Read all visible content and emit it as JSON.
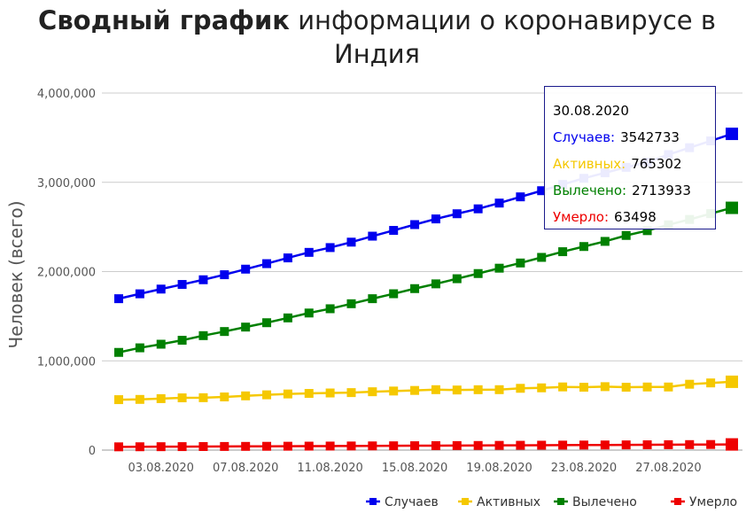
{
  "title_bold": "Сводный график",
  "title_rest": "информации о коронавирусе в Индия",
  "chart_data": {
    "type": "line",
    "ylabel": "Человек (всего)",
    "ylim": [
      0,
      4000000
    ],
    "yticks": [
      "0",
      "1,000,000",
      "2,000,000",
      "3,000,000",
      "4,000,000"
    ],
    "xticks": [
      "03.08.2020",
      "07.08.2020",
      "11.08.2020",
      "15.08.2020",
      "19.08.2020",
      "23.08.2020",
      "27.08.2020"
    ],
    "legend_position": "bottom-right",
    "categories": [
      "01.08.2020",
      "02.08.2020",
      "03.08.2020",
      "04.08.2020",
      "05.08.2020",
      "06.08.2020",
      "07.08.2020",
      "08.08.2020",
      "09.08.2020",
      "10.08.2020",
      "11.08.2020",
      "12.08.2020",
      "13.08.2020",
      "14.08.2020",
      "15.08.2020",
      "16.08.2020",
      "17.08.2020",
      "18.08.2020",
      "19.08.2020",
      "20.08.2020",
      "21.08.2020",
      "22.08.2020",
      "23.08.2020",
      "24.08.2020",
      "25.08.2020",
      "26.08.2020",
      "27.08.2020",
      "28.08.2020",
      "29.08.2020",
      "30.08.2020"
    ],
    "series": [
      {
        "name": "Случаев",
        "color": "#0000ee",
        "values": [
          1695988,
          1750723,
          1803695,
          1855745,
          1908254,
          1964536,
          2027074,
          2088611,
          2153010,
          2215074,
          2268675,
          2329638,
          2396637,
          2461190,
          2526192,
          2589682,
          2647663,
          2702742,
          2767273,
          2836925,
          2905825,
          2975701,
          3044940,
          3106348,
          3167323,
          3224547,
          3310234,
          3387500,
          3463972,
          3542733
        ]
      },
      {
        "name": "Активных",
        "color": "#f5c800",
        "values": [
          565103,
          567730,
          576511,
          585297,
          587012,
          595501,
          607384,
          619088,
          628747,
          634945,
          639929,
          643948,
          653622,
          661595,
          668220,
          676900,
          673166,
          676514,
          676900,
          692028,
          697330,
          707668,
          704348,
          710771,
          704348,
          706851,
          706851,
          737700,
          752424,
          765302
        ]
      },
      {
        "name": "Вылечено",
        "color": "#008000",
        "values": [
          1094374,
          1145629,
          1186203,
          1230509,
          1282215,
          1328336,
          1378105,
          1427005,
          1480884,
          1535743,
          1583489,
          1639599,
          1695982,
          1751555,
          1808936,
          1862258,
          1919842,
          1977779,
          2037870,
          2096064,
          2158946,
          2222577,
          2280566,
          2338035,
          2404585,
          2458339,
          2523771,
          2583948,
          2648998,
          2713933
        ]
      },
      {
        "name": "Умерло",
        "color": "#ee0000",
        "values": [
          36511,
          37364,
          38135,
          38938,
          39795,
          40699,
          41585,
          42518,
          43379,
          44386,
          45257,
          46091,
          47033,
          48040,
          49036,
          49980,
          50921,
          51797,
          52889,
          53866,
          54849,
          55794,
          56706,
          57542,
          58390,
          59449,
          60472,
          61529,
          62550,
          63498
        ]
      }
    ]
  },
  "tooltip": {
    "date": "30.08.2020",
    "rows": [
      {
        "label": "Случаев:",
        "value": "3542733",
        "color": "#0000ee"
      },
      {
        "label": "Активных:",
        "value": "765302",
        "color": "#f5c800"
      },
      {
        "label": "Вылечено:",
        "value": "2713933",
        "color": "#008000"
      },
      {
        "label": "Умерло:",
        "value": "63498",
        "color": "#ee0000"
      }
    ]
  }
}
